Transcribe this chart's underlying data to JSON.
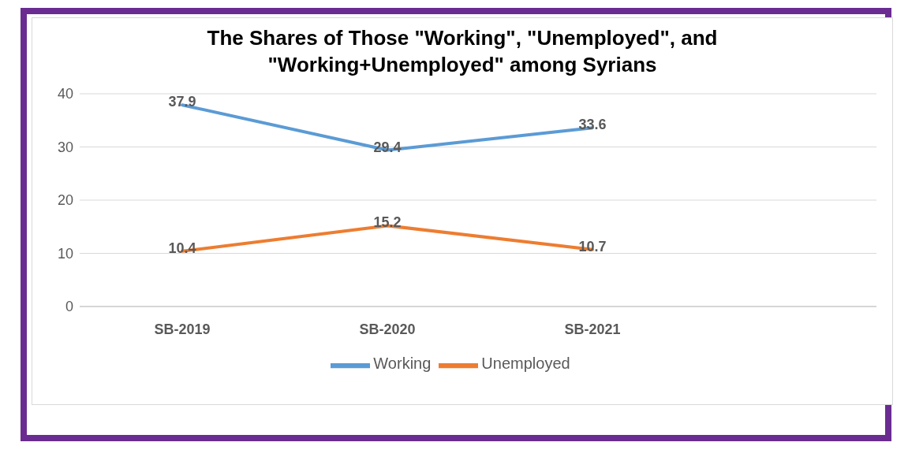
{
  "chart_data": {
    "type": "line",
    "title": "The Shares of Those \"Working\", \"Unemployed\", and \"Working+Unemployed\" among Syrians",
    "categories": [
      "SB-2019",
      "SB-2020",
      "SB-2021",
      null
    ],
    "series": [
      {
        "name": "Working",
        "color": "#5b9bd5",
        "values": [
          37.9,
          29.4,
          33.6,
          null
        ]
      },
      {
        "name": "Unemployed",
        "color": "#ed7d31",
        "values": [
          10.4,
          15.2,
          10.7,
          null
        ]
      }
    ],
    "ylim": [
      0,
      40
    ],
    "yticks": [
      0,
      10,
      20,
      30,
      40
    ],
    "grid": "y",
    "legend": "bottom",
    "marker": "none",
    "line_style": "solid",
    "data_labels": true
  }
}
